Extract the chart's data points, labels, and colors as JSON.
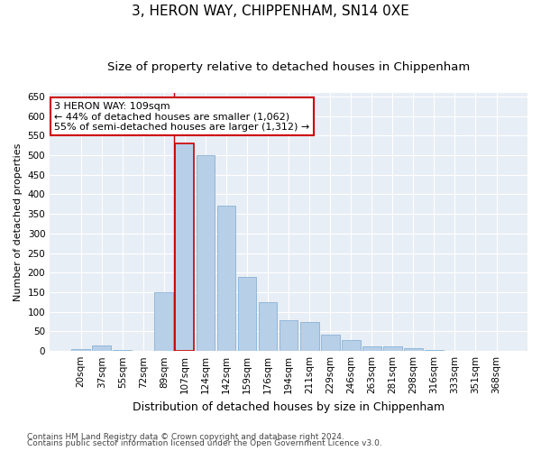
{
  "title": "3, HERON WAY, CHIPPENHAM, SN14 0XE",
  "subtitle": "Size of property relative to detached houses in Chippenham",
  "xlabel": "Distribution of detached houses by size in Chippenham",
  "ylabel": "Number of detached properties",
  "categories": [
    "20sqm",
    "37sqm",
    "55sqm",
    "72sqm",
    "89sqm",
    "107sqm",
    "124sqm",
    "142sqm",
    "159sqm",
    "176sqm",
    "194sqm",
    "211sqm",
    "229sqm",
    "246sqm",
    "263sqm",
    "281sqm",
    "298sqm",
    "316sqm",
    "333sqm",
    "351sqm",
    "368sqm"
  ],
  "values": [
    5,
    15,
    2,
    0,
    150,
    530,
    500,
    370,
    190,
    125,
    78,
    75,
    42,
    28,
    12,
    13,
    8,
    2,
    1,
    1,
    1
  ],
  "bar_color": "#b8cfe8",
  "bar_edge_color": "#7aaad0",
  "highlight_bar_index": 5,
  "highlight_bar_edge_color": "#cc0000",
  "annotation_text": "3 HERON WAY: 109sqm\n← 44% of detached houses are smaller (1,062)\n55% of semi-detached houses are larger (1,312) →",
  "annotation_box_color": "#ffffff",
  "annotation_box_edge_color": "#cc0000",
  "vline_x": 4.5,
  "ylim": [
    0,
    660
  ],
  "yticks": [
    0,
    50,
    100,
    150,
    200,
    250,
    300,
    350,
    400,
    450,
    500,
    550,
    600,
    650
  ],
  "footer_line1": "Contains HM Land Registry data © Crown copyright and database right 2024.",
  "footer_line2": "Contains public sector information licensed under the Open Government Licence v3.0.",
  "bg_color": "#ffffff",
  "plot_bg_color": "#e8eef5",
  "grid_color": "#ffffff",
  "title_fontsize": 11,
  "subtitle_fontsize": 9.5,
  "xlabel_fontsize": 9,
  "ylabel_fontsize": 8,
  "tick_fontsize": 7.5,
  "footer_fontsize": 6.5,
  "annot_fontsize": 8
}
